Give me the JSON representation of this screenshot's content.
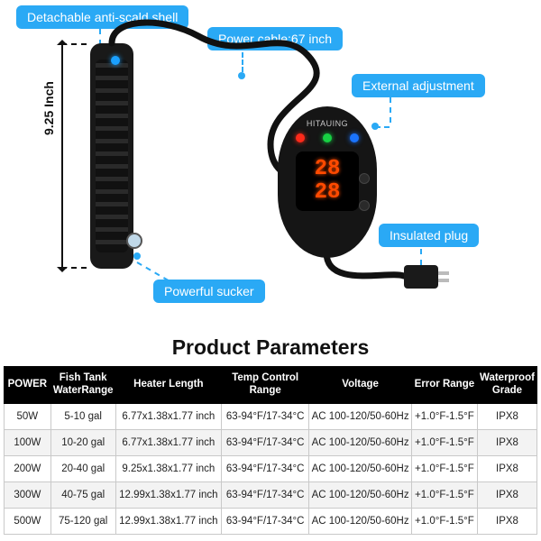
{
  "labels": {
    "shell": "Detachable anti-scald shell",
    "cable": "Power cable:67 inch",
    "adjust": "External adjustment",
    "plug": "Insulated plug",
    "sucker": "Powerful sucker"
  },
  "height_label": "9.25 Inch",
  "controller": {
    "brand": "HITAUING",
    "display_top": "28",
    "display_bottom": "28"
  },
  "title": "Product Parameters",
  "table": {
    "columns": [
      "POWER",
      "Fish Tank\nWaterRange",
      "Heater Length",
      "Temp Control\nRange",
      "Voltage",
      "Error Range",
      "Waterproof\nGrade"
    ],
    "rows": [
      [
        "50W",
        "5-10 gal",
        "6.77x1.38x1.77 inch",
        "63-94°F/17-34°C",
        "AC 100-120/50-60Hz",
        "+1.0°F-1.5°F",
        "IPX8"
      ],
      [
        "100W",
        "10-20 gal",
        "6.77x1.38x1.77 inch",
        "63-94°F/17-34°C",
        "AC 100-120/50-60Hz",
        "+1.0°F-1.5°F",
        "IPX8"
      ],
      [
        "200W",
        "20-40 gal",
        "9.25x1.38x1.77 inch",
        "63-94°F/17-34°C",
        "AC 100-120/50-60Hz",
        "+1.0°F-1.5°F",
        "IPX8"
      ],
      [
        "300W",
        "40-75 gal",
        "12.99x1.38x1.77 inch",
        "63-94°F/17-34°C",
        "AC 100-120/50-60Hz",
        "+1.0°F-1.5°F",
        "IPX8"
      ],
      [
        "500W",
        "75-120 gal",
        "12.99x1.38x1.77 inch",
        "63-94°F/17-34°C",
        "AC 100-120/50-60Hz",
        "+1.0°F-1.5°F",
        "IPX8"
      ]
    ],
    "col_widths": [
      "52px",
      "72px",
      "120px",
      "102px",
      "120px",
      "76px",
      "66px"
    ]
  },
  "colors": {
    "accent": "#2aa9f5",
    "header_bg": "#000000"
  }
}
